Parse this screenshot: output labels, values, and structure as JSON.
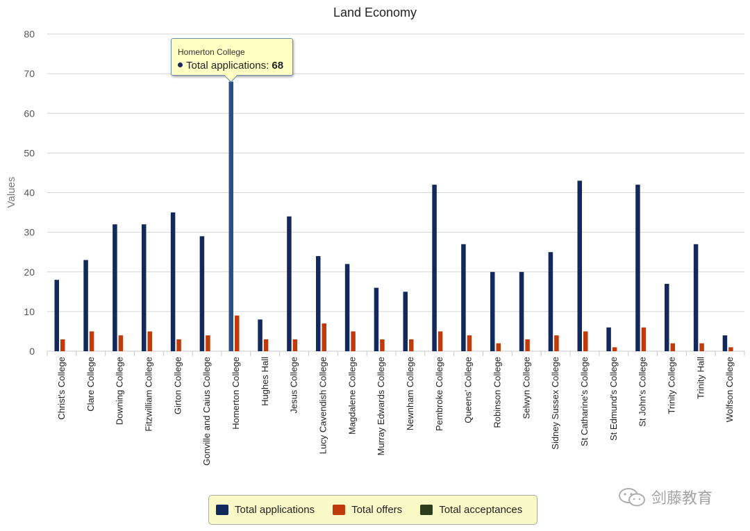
{
  "chart_data": {
    "type": "bar",
    "title": "Land Economy",
    "ylabel": "Values",
    "xlabel": "",
    "ylim": [
      0,
      80
    ],
    "yticks": [
      0,
      10,
      20,
      30,
      40,
      50,
      60,
      70,
      80
    ],
    "grid": true,
    "legend_position": "bottom",
    "categories": [
      "Christ's College",
      "Clare College",
      "Downing College",
      "Fitzwilliam College",
      "Girton College",
      "Gonville and Caius College",
      "Homerton College",
      "Hughes Hall",
      "Jesus College",
      "Lucy Cavendish College",
      "Magdalene College",
      "Murray Edwards College",
      "Newnham College",
      "Pembroke College",
      "Queens' College",
      "Robinson College",
      "Selwyn College",
      "Sidney Sussex College",
      "St Catharine's College",
      "St Edmund's College",
      "St John's College",
      "Trinity College",
      "Trinity Hall",
      "Wolfson College"
    ],
    "series": [
      {
        "name": "Total applications",
        "color": "#13295b",
        "values": [
          18,
          23,
          32,
          32,
          35,
          29,
          68,
          8,
          34,
          24,
          22,
          16,
          15,
          42,
          27,
          20,
          20,
          25,
          43,
          6,
          42,
          17,
          27,
          4
        ]
      },
      {
        "name": "Total offers",
        "color": "#c03a0c",
        "values": [
          3,
          5,
          4,
          5,
          3,
          4,
          9,
          3,
          3,
          7,
          5,
          3,
          3,
          5,
          4,
          2,
          3,
          4,
          5,
          1,
          6,
          2,
          2,
          1
        ]
      },
      {
        "name": "Total acceptances",
        "color": "#2d3c1c",
        "values": [
          0,
          0,
          0,
          0,
          0,
          0,
          0,
          0,
          0,
          0,
          0,
          0,
          0,
          0,
          0,
          0,
          0,
          0,
          0,
          0,
          0,
          0,
          0,
          0
        ]
      }
    ],
    "highlight_index": 6,
    "highlight_color": "#2a4f88"
  },
  "tooltip": {
    "title": "Homerton College",
    "series_label": "Total applications: ",
    "value": "68"
  },
  "watermark": {
    "text": "剑藤教育"
  }
}
